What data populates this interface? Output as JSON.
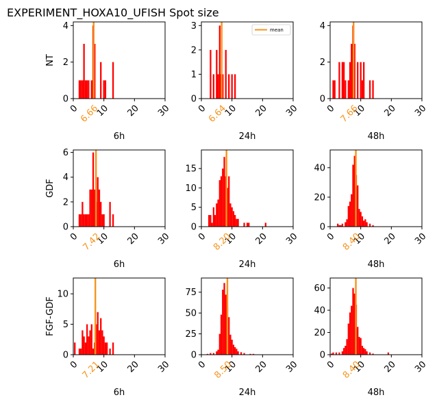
{
  "title": "EXPERIMENT_HOXA10_UFISH  Spot size",
  "colors": {
    "bars": "#ff0000",
    "mean": "#f5941d"
  },
  "chart_data": [
    {
      "type": "bar",
      "row_label": "NT",
      "xlabel": "6h",
      "mean_label": "6.66",
      "mean": 6.66,
      "xlim": [
        0,
        30
      ],
      "ylim": [
        0,
        4.2
      ],
      "yticks": [
        0,
        2,
        4
      ],
      "xticks": [
        0,
        10,
        20,
        30
      ],
      "legend": null,
      "bars": [
        [
          2,
          1
        ],
        [
          2.5,
          1
        ],
        [
          3,
          1
        ],
        [
          3.5,
          3
        ],
        [
          4,
          1
        ],
        [
          4.5,
          1
        ],
        [
          5,
          1
        ],
        [
          6,
          1
        ],
        [
          6.5,
          4
        ],
        [
          7,
          3
        ],
        [
          9,
          2
        ],
        [
          10,
          1
        ],
        [
          10.5,
          1
        ],
        [
          13,
          2
        ]
      ]
    },
    {
      "type": "bar",
      "row_label": "",
      "xlabel": "24h",
      "mean_label": "6.64",
      "mean": 6.64,
      "xlim": [
        0,
        30
      ],
      "ylim": [
        0,
        3.15
      ],
      "yticks": [
        0,
        1,
        2,
        3
      ],
      "xticks": [
        0,
        10,
        20,
        30
      ],
      "legend": {
        "label": "mean",
        "position": "top-right"
      },
      "bars": [
        [
          3,
          2
        ],
        [
          4,
          1
        ],
        [
          5,
          2
        ],
        [
          5.5,
          1
        ],
        [
          6,
          3
        ],
        [
          6.5,
          1
        ],
        [
          7,
          1
        ],
        [
          8,
          2
        ],
        [
          9,
          1
        ],
        [
          10,
          1
        ],
        [
          11,
          1
        ]
      ]
    },
    {
      "type": "bar",
      "row_label": "",
      "xlabel": "48h",
      "mean_label": "7.66",
      "mean": 7.66,
      "xlim": [
        0,
        30
      ],
      "ylim": [
        0,
        4.2
      ],
      "yticks": [
        0,
        2,
        4
      ],
      "xticks": [
        0,
        10,
        20,
        30
      ],
      "legend": null,
      "bars": [
        [
          1,
          1
        ],
        [
          1.5,
          1
        ],
        [
          3,
          2
        ],
        [
          4,
          2
        ],
        [
          4.5,
          2
        ],
        [
          5,
          1
        ],
        [
          6,
          1
        ],
        [
          6.5,
          2
        ],
        [
          7,
          3
        ],
        [
          7.5,
          4
        ],
        [
          8,
          3
        ],
        [
          9,
          2
        ],
        [
          10,
          2
        ],
        [
          10.5,
          1
        ],
        [
          11,
          2
        ],
        [
          13,
          1
        ],
        [
          14,
          1
        ]
      ]
    },
    {
      "type": "bar",
      "row_label": "GDF",
      "xlabel": "6h",
      "mean_label": "7.42",
      "mean": 7.42,
      "xlim": [
        0,
        30
      ],
      "ylim": [
        0,
        6.2
      ],
      "yticks": [
        0,
        2,
        4,
        6
      ],
      "xticks": [
        0,
        10,
        20,
        30
      ],
      "legend": null,
      "bars": [
        [
          2,
          1
        ],
        [
          2.5,
          1
        ],
        [
          3,
          2
        ],
        [
          3.5,
          1
        ],
        [
          4,
          1
        ],
        [
          4.5,
          1
        ],
        [
          5,
          1
        ],
        [
          5.5,
          3
        ],
        [
          6,
          3
        ],
        [
          6.5,
          6
        ],
        [
          7,
          3
        ],
        [
          7.5,
          2
        ],
        [
          8,
          4
        ],
        [
          8.5,
          3
        ],
        [
          9,
          2
        ],
        [
          9.5,
          1
        ],
        [
          10,
          1
        ],
        [
          12,
          2
        ],
        [
          13,
          1
        ]
      ]
    },
    {
      "type": "bar",
      "row_label": "",
      "xlabel": "24h",
      "mean_label": "8.20",
      "mean": 8.2,
      "xlim": [
        0,
        30
      ],
      "ylim": [
        0,
        19.8
      ],
      "yticks": [
        0,
        5,
        10,
        15
      ],
      "xticks": [
        0,
        10,
        20,
        30
      ],
      "legend": null,
      "bars": [
        [
          2.5,
          3
        ],
        [
          3,
          3
        ],
        [
          3.5,
          1
        ],
        [
          4,
          5
        ],
        [
          4.5,
          3
        ],
        [
          5,
          6
        ],
        [
          5.5,
          7
        ],
        [
          6,
          12
        ],
        [
          6.5,
          13
        ],
        [
          7,
          15
        ],
        [
          7.5,
          18
        ],
        [
          8,
          13
        ],
        [
          8.5,
          10
        ],
        [
          9,
          13
        ],
        [
          9.5,
          6
        ],
        [
          10,
          5
        ],
        [
          10.5,
          4
        ],
        [
          11,
          3
        ],
        [
          11.5,
          2
        ],
        [
          12,
          2
        ],
        [
          14,
          1
        ],
        [
          15,
          1
        ],
        [
          15.5,
          1
        ],
        [
          21,
          1
        ]
      ]
    },
    {
      "type": "bar",
      "row_label": "",
      "xlabel": "48h",
      "mean_label": "8.40",
      "mean": 8.4,
      "xlim": [
        0,
        30
      ],
      "ylim": [
        0,
        52
      ],
      "yticks": [
        0,
        20,
        40
      ],
      "xticks": [
        0,
        10,
        20,
        30
      ],
      "legend": null,
      "bars": [
        [
          2.5,
          2
        ],
        [
          3,
          1
        ],
        [
          3.5,
          1
        ],
        [
          4,
          2
        ],
        [
          5,
          3
        ],
        [
          5.5,
          5
        ],
        [
          6,
          14
        ],
        [
          6.5,
          17
        ],
        [
          7,
          22
        ],
        [
          7.5,
          42
        ],
        [
          8,
          48
        ],
        [
          8.5,
          35
        ],
        [
          9,
          28
        ],
        [
          9.5,
          12
        ],
        [
          10,
          10
        ],
        [
          10.5,
          7
        ],
        [
          11,
          4
        ],
        [
          11.5,
          5
        ],
        [
          12,
          3
        ],
        [
          13,
          2
        ],
        [
          14,
          1
        ]
      ]
    },
    {
      "type": "bar",
      "row_label": "FGF-GDF",
      "xlabel": "6h",
      "mean_label": "7.21",
      "mean": 7.21,
      "xlim": [
        0,
        30
      ],
      "ylim": [
        0,
        12.6
      ],
      "yticks": [
        0,
        5,
        10
      ],
      "xticks": [
        0,
        10,
        20,
        30
      ],
      "legend": null,
      "bars": [
        [
          0.5,
          2
        ],
        [
          2,
          1
        ],
        [
          2.5,
          1
        ],
        [
          3,
          4
        ],
        [
          3.5,
          3
        ],
        [
          4,
          2
        ],
        [
          4.5,
          5
        ],
        [
          5,
          3
        ],
        [
          5.5,
          4
        ],
        [
          6,
          5
        ],
        [
          6.5,
          1
        ],
        [
          7,
          2
        ],
        [
          7.5,
          5
        ],
        [
          8,
          7
        ],
        [
          8.5,
          4
        ],
        [
          9,
          6
        ],
        [
          9.5,
          4
        ],
        [
          10,
          3
        ],
        [
          10.5,
          2
        ],
        [
          11,
          2
        ],
        [
          12,
          1
        ],
        [
          13,
          2
        ]
      ]
    },
    {
      "type": "bar",
      "row_label": "",
      "xlabel": "24h",
      "mean_label": "8.50",
      "mean": 8.5,
      "xlim": [
        0,
        30
      ],
      "ylim": [
        0,
        92
      ],
      "yticks": [
        0,
        25,
        50,
        75
      ],
      "xticks": [
        0,
        10,
        20,
        30
      ],
      "legend": null,
      "bars": [
        [
          2,
          1
        ],
        [
          3,
          2
        ],
        [
          4,
          2
        ],
        [
          5,
          4
        ],
        [
          5.5,
          6
        ],
        [
          6,
          25
        ],
        [
          6.5,
          48
        ],
        [
          7,
          78
        ],
        [
          7.5,
          86
        ],
        [
          8,
          72
        ],
        [
          8.5,
          58
        ],
        [
          9,
          45
        ],
        [
          9.5,
          24
        ],
        [
          10,
          18
        ],
        [
          10.5,
          12
        ],
        [
          11,
          9
        ],
        [
          11.5,
          7
        ],
        [
          12,
          4
        ],
        [
          13,
          3
        ],
        [
          14,
          2
        ],
        [
          16,
          1
        ],
        [
          17,
          1
        ]
      ]
    },
    {
      "type": "bar",
      "row_label": "",
      "xlabel": "48h",
      "mean_label": "8.40",
      "mean": 8.4,
      "xlim": [
        0,
        30
      ],
      "ylim": [
        0,
        69
      ],
      "yticks": [
        0,
        20,
        40,
        60
      ],
      "xticks": [
        0,
        10,
        20,
        30
      ],
      "legend": null,
      "bars": [
        [
          0.5,
          1
        ],
        [
          1,
          2
        ],
        [
          2,
          2
        ],
        [
          3,
          2
        ],
        [
          4,
          3
        ],
        [
          4.5,
          6
        ],
        [
          5,
          8
        ],
        [
          5.5,
          14
        ],
        [
          6,
          28
        ],
        [
          6.5,
          38
        ],
        [
          7,
          44
        ],
        [
          7.5,
          60
        ],
        [
          8,
          55
        ],
        [
          8.5,
          45
        ],
        [
          9,
          25
        ],
        [
          9.5,
          16
        ],
        [
          10,
          15
        ],
        [
          10.5,
          8
        ],
        [
          11,
          6
        ],
        [
          11.5,
          5
        ],
        [
          12,
          3
        ],
        [
          13,
          2
        ],
        [
          14,
          1
        ],
        [
          19,
          2
        ]
      ]
    }
  ]
}
